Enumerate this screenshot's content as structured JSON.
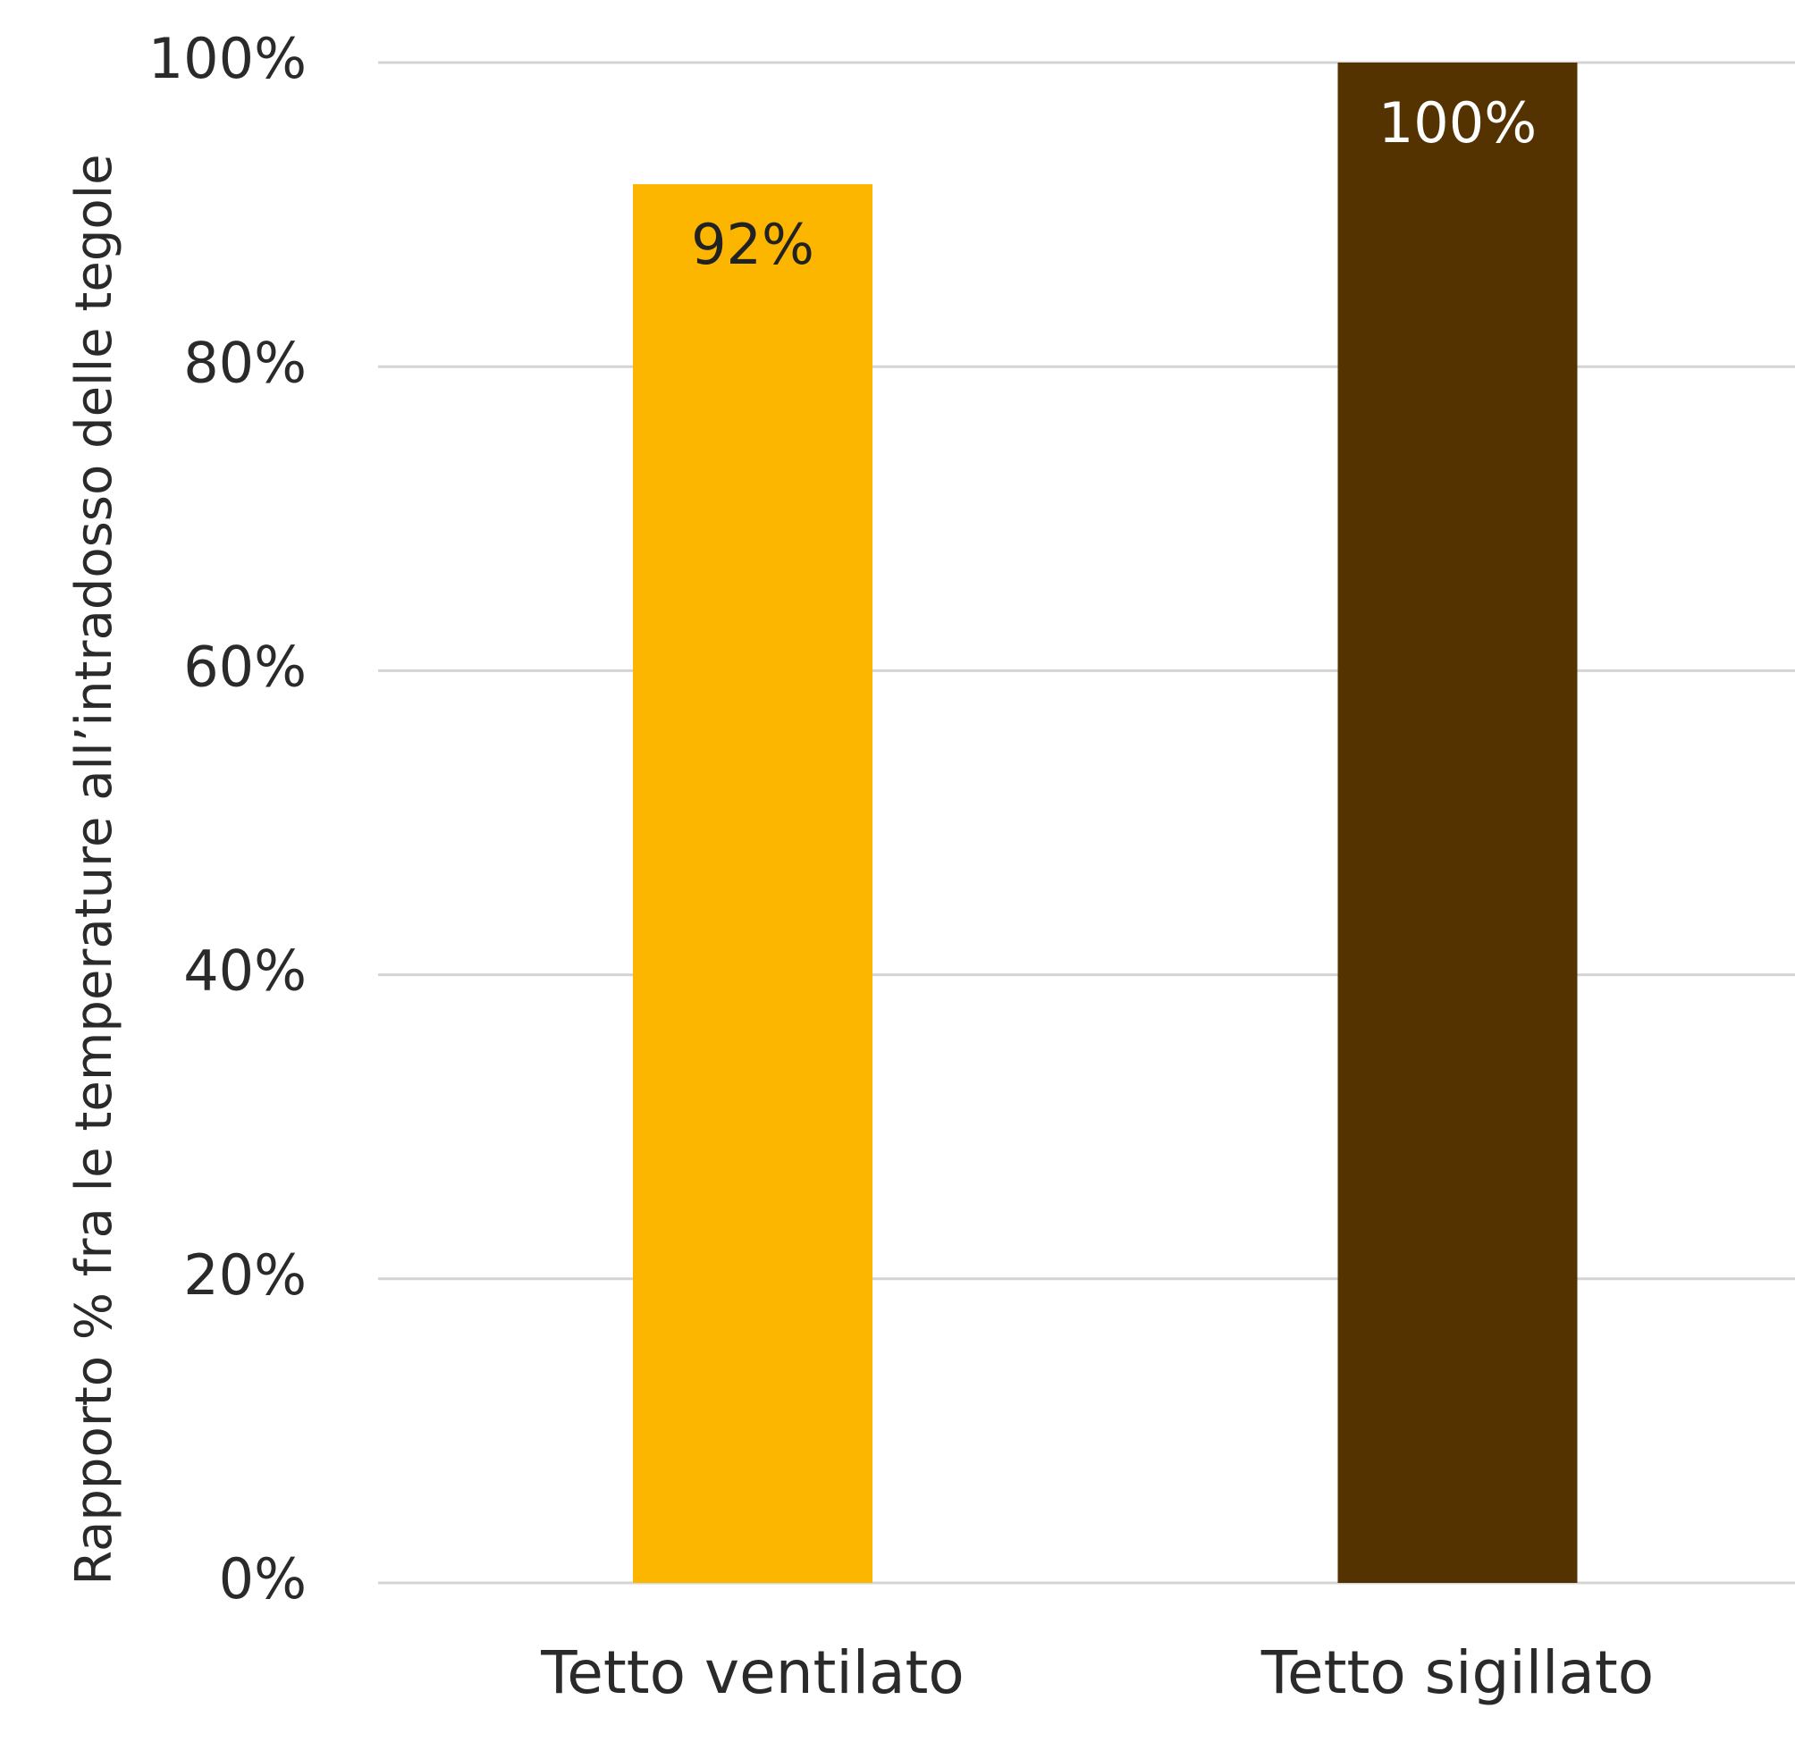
{
  "chart_data": {
    "type": "bar",
    "y_axis_label": "Rapporto % fra le temperature all’intradosso delle tegole",
    "categories": [
      "Tetto ventilato",
      "Tetto sigillato"
    ],
    "values": [
      92,
      100
    ],
    "value_labels": [
      "92%",
      "100%"
    ],
    "colors": [
      "#fdb600",
      "#553300"
    ],
    "value_label_colors": [
      "#222222",
      "#ffffff"
    ],
    "ylim": [
      0,
      100
    ],
    "yticks": [
      {
        "value": 0,
        "label": "0%"
      },
      {
        "value": 20,
        "label": "20%"
      },
      {
        "value": 40,
        "label": "40%"
      },
      {
        "value": 60,
        "label": "60%"
      },
      {
        "value": 80,
        "label": "80%"
      },
      {
        "value": 100,
        "label": "100%"
      }
    ],
    "grid": true
  }
}
